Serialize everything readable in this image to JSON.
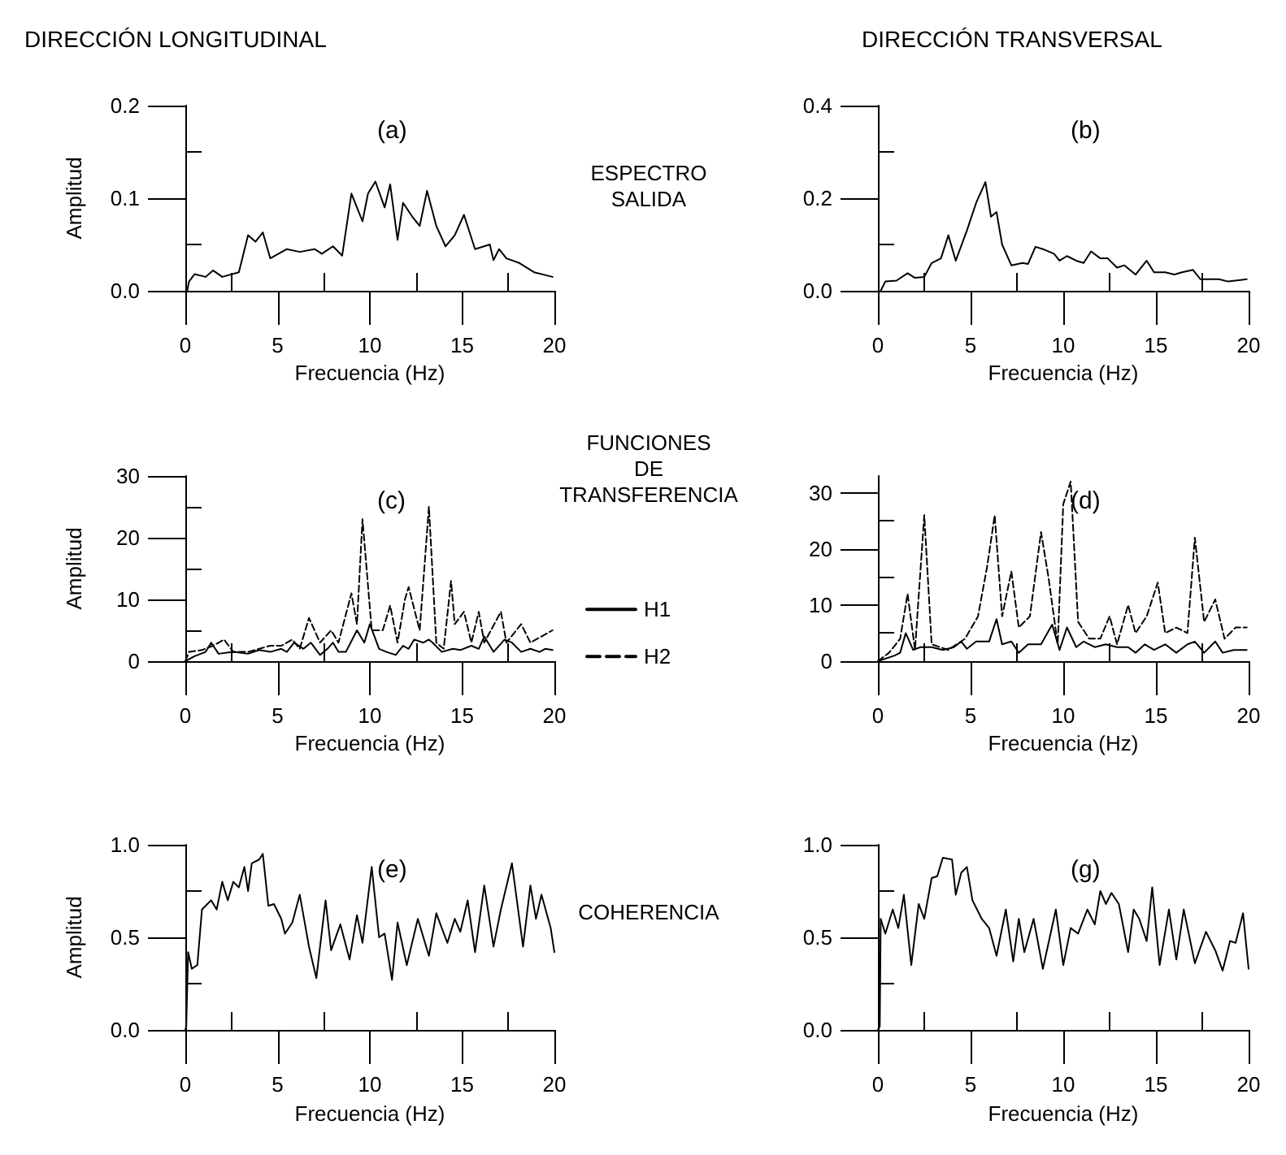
{
  "chart_data": [
    {
      "type": "line",
      "title": "DIRECCIÓN LONGITUDINAL",
      "xlabel": "Frecuencia (Hz)",
      "ylabel": "Amplitud",
      "annotations": [
        "(a)",
        "ESPECTRO SALIDA"
      ],
      "marker": "none",
      "xlim": [
        0,
        20
      ],
      "xticks": [
        0,
        {
          "value": 2.5,
          "label": null
        },
        5,
        {
          "value": 7.5,
          "label": null
        },
        10,
        {
          "value": 12.5,
          "label": null
        },
        15,
        {
          "value": 17.5,
          "label": null
        },
        20
      ],
      "ylim": [
        0,
        0.2
      ],
      "yticks": [
        {
          "value": 0,
          "label": "0.0"
        },
        {
          "value": 0.05,
          "label": null
        },
        {
          "value": 0.1,
          "label": "0.1"
        },
        {
          "value": 0.15,
          "label": null
        },
        {
          "value": 0.2,
          "label": "0.2"
        }
      ],
      "series": [
        {
          "color": "#000000",
          "line_style": "solid",
          "x": [
            0.1,
            0.2,
            0.5,
            1.1,
            1.5,
            2.0,
            2.9,
            3.4,
            3.8,
            4.2,
            4.6,
            5.5,
            6.2,
            7.0,
            7.4,
            8.0,
            8.5,
            9.0,
            9.6,
            9.9,
            10.3,
            10.8,
            11.1,
            11.5,
            11.8,
            12.3,
            12.7,
            13.1,
            13.6,
            14.1,
            14.6,
            15.1,
            15.7,
            16.5,
            16.7,
            17.0,
            17.4,
            18.1,
            18.9,
            19.9
          ],
          "values": [
            0,
            0.01,
            0.018,
            0.015,
            0.022,
            0.015,
            0.02,
            0.06,
            0.053,
            0.063,
            0.035,
            0.045,
            0.042,
            0.045,
            0.04,
            0.048,
            0.038,
            0.105,
            0.075,
            0.105,
            0.118,
            0.09,
            0.115,
            0.055,
            0.095,
            0.08,
            0.07,
            0.108,
            0.07,
            0.048,
            0.06,
            0.082,
            0.045,
            0.05,
            0.033,
            0.045,
            0.035,
            0.03,
            0.02,
            0.015
          ]
        }
      ]
    },
    {
      "type": "line",
      "title": "DIRECCIÓN TRANSVERSAL",
      "xlabel": "Frecuencia (Hz)",
      "annotations": [
        "(b)"
      ],
      "marker": "none",
      "xlim": [
        0,
        20
      ],
      "xticks": [
        0,
        {
          "value": 2.5,
          "label": null
        },
        5,
        {
          "value": 7.5,
          "label": null
        },
        10,
        {
          "value": 12.5,
          "label": null
        },
        15,
        {
          "value": 17.5,
          "label": null
        },
        20
      ],
      "ylim": [
        0,
        0.4
      ],
      "yticks": [
        {
          "value": 0,
          "label": "0.0"
        },
        {
          "value": 0.1,
          "label": null
        },
        {
          "value": 0.2,
          "label": "0.2"
        },
        {
          "value": 0.3,
          "label": null
        },
        {
          "value": 0.4,
          "label": "0.4"
        }
      ],
      "series": [
        {
          "color": "#000000",
          "line_style": "solid",
          "x": [
            0.15,
            0.4,
            1.0,
            1.6,
            2.0,
            2.5,
            2.9,
            3.4,
            3.8,
            4.2,
            4.8,
            5.3,
            5.8,
            6.1,
            6.4,
            6.7,
            7.2,
            7.8,
            8.1,
            8.5,
            8.9,
            9.5,
            9.8,
            10.2,
            10.7,
            11.1,
            11.5,
            12.0,
            12.4,
            12.9,
            13.3,
            13.9,
            14.5,
            14.9,
            15.5,
            16.0,
            16.4,
            17.0,
            17.4,
            18.4,
            18.9,
            19.9
          ],
          "values": [
            0,
            0.02,
            0.022,
            0.038,
            0.028,
            0.03,
            0.06,
            0.07,
            0.12,
            0.065,
            0.13,
            0.19,
            0.235,
            0.16,
            0.17,
            0.1,
            0.055,
            0.06,
            0.058,
            0.095,
            0.09,
            0.08,
            0.065,
            0.075,
            0.065,
            0.06,
            0.085,
            0.07,
            0.07,
            0.05,
            0.055,
            0.035,
            0.065,
            0.04,
            0.04,
            0.035,
            0.04,
            0.045,
            0.025,
            0.025,
            0.02,
            0.025
          ]
        }
      ]
    },
    {
      "type": "line",
      "xlabel": "Frecuencia (Hz)",
      "ylabel": "Amplitud",
      "annotations": [
        "(c)",
        "FUNCIONES DE TRANSFERENCIA"
      ],
      "legend": "right",
      "marker": "none",
      "xlim": [
        0,
        20
      ],
      "xticks": [
        0,
        {
          "value": 2.5,
          "label": null
        },
        5,
        {
          "value": 7.5,
          "label": null
        },
        10,
        {
          "value": 12.5,
          "label": null
        },
        15,
        {
          "value": 17.5,
          "label": null
        },
        20
      ],
      "ylim": [
        0,
        30
      ],
      "yticks": [
        0,
        {
          "value": 5,
          "label": null
        },
        10,
        {
          "value": 15,
          "label": null
        },
        20,
        {
          "value": 25,
          "label": null
        },
        30
      ],
      "series": [
        {
          "name": "H1",
          "color": "#000000",
          "line_style": "solid",
          "x": [
            0,
            0.5,
            1.1,
            1.4,
            1.8,
            2.6,
            3.4,
            4.0,
            4.6,
            5.2,
            5.5,
            5.9,
            6.4,
            6.8,
            7.3,
            7.7,
            8.0,
            8.3,
            8.7,
            9.3,
            9.7,
            10.0,
            10.5,
            10.9,
            11.4,
            11.8,
            12.1,
            12.4,
            12.9,
            13.2,
            13.4,
            13.9,
            14.5,
            14.9,
            15.5,
            15.9,
            16.2,
            16.7,
            17.3,
            17.7,
            18.2,
            18.7,
            19.2,
            19.5,
            19.9
          ],
          "values": [
            0,
            0.8,
            1.5,
            3,
            1.2,
            1.5,
            1.2,
            1.8,
            1.5,
            2,
            1.5,
            3,
            2,
            3,
            1,
            2,
            3,
            1.5,
            1.5,
            5,
            3,
            6,
            2,
            1.5,
            1,
            2.5,
            2,
            3.5,
            3,
            3.5,
            3,
            1.5,
            2,
            1.8,
            2.5,
            2,
            4,
            1.5,
            3.5,
            3,
            1.5,
            2,
            1.5,
            2,
            1.8
          ]
        },
        {
          "name": "H2",
          "color": "#000000",
          "line_style": "dashed",
          "x": [
            0,
            0.2,
            0.9,
            1.5,
            2.1,
            2.6,
            3.4,
            4.6,
            5.2,
            5.8,
            6.2,
            6.7,
            7.3,
            7.9,
            8.3,
            9.0,
            9.3,
            9.6,
            10.1,
            10.7,
            11.1,
            11.5,
            11.9,
            12.1,
            12.7,
            13.2,
            13.6,
            14.0,
            14.4,
            14.6,
            15.1,
            15.5,
            15.9,
            16.2,
            17.1,
            17.4,
            18.2,
            18.7,
            19.3,
            19.9
          ],
          "values": [
            0,
            1.5,
            1.8,
            2.5,
            3.5,
            1.5,
            1.5,
            2.5,
            2.5,
            3.5,
            2,
            7,
            3,
            5,
            3,
            11,
            6,
            23,
            5,
            5,
            9,
            3,
            10,
            12,
            5,
            25,
            3,
            2,
            13,
            6,
            8,
            3,
            8,
            3,
            8,
            3,
            6,
            3,
            4,
            5
          ]
        }
      ]
    },
    {
      "type": "line",
      "xlabel": "Frecuencia (Hz)",
      "annotations": [
        "(d)"
      ],
      "marker": "none",
      "xlim": [
        0,
        20
      ],
      "xticks": [
        0,
        {
          "value": 2.5,
          "label": null
        },
        5,
        {
          "value": 7.5,
          "label": null
        },
        10,
        {
          "value": 12.5,
          "label": null
        },
        15,
        {
          "value": 17.5,
          "label": null
        },
        20
      ],
      "ylim": [
        0,
        33
      ],
      "yticks": [
        0,
        {
          "value": 5,
          "label": null
        },
        10,
        {
          "value": 15,
          "label": null
        },
        20,
        {
          "value": 25,
          "label": null
        },
        30
      ],
      "series": [
        {
          "color": "#000000",
          "line_style": "solid",
          "x": [
            0,
            0.9,
            1.2,
            1.5,
            1.9,
            2.3,
            2.9,
            3.5,
            4.1,
            4.5,
            4.8,
            5.3,
            6.0,
            6.4,
            6.7,
            7.2,
            7.6,
            8.1,
            8.8,
            9.4,
            9.8,
            10.2,
            10.7,
            11.1,
            11.7,
            12.3,
            12.9,
            13.5,
            13.9,
            14.4,
            14.9,
            15.5,
            16.1,
            16.7,
            17.1,
            17.6,
            18.2,
            18.6,
            19.2,
            19.9
          ],
          "values": [
            0,
            1,
            1.5,
            5,
            2,
            2.5,
            2.5,
            2,
            2.5,
            3.5,
            2.2,
            3.5,
            3.5,
            7.5,
            3,
            3.5,
            1.5,
            3,
            3,
            6.5,
            2,
            6,
            2.5,
            3.5,
            2.5,
            3,
            2.5,
            2.5,
            1.5,
            3,
            2,
            3,
            1.5,
            3,
            3.5,
            1.5,
            3.5,
            1.5,
            2,
            2
          ]
        },
        {
          "color": "#000000",
          "line_style": "dashed",
          "x": [
            0,
            0.6,
            1.2,
            1.6,
            2.0,
            2.5,
            2.9,
            3.8,
            4.7,
            5.4,
            5.9,
            6.3,
            6.7,
            7.2,
            7.6,
            8.2,
            8.8,
            9.2,
            9.7,
            10.0,
            10.4,
            10.8,
            11.4,
            12.0,
            12.5,
            12.9,
            13.5,
            13.9,
            14.5,
            15.1,
            15.5,
            16.1,
            16.7,
            17.1,
            17.6,
            18.2,
            18.7,
            19.3,
            19.9
          ],
          "values": [
            0,
            1.5,
            4,
            12,
            2,
            26,
            3,
            2,
            4,
            8,
            17,
            26,
            8,
            16,
            6,
            8,
            23,
            15,
            3,
            28,
            32,
            7,
            4,
            4,
            8,
            3,
            10,
            5,
            8,
            14,
            5,
            6,
            5,
            22,
            7,
            11,
            4,
            6,
            6
          ]
        }
      ]
    },
    {
      "type": "line",
      "xlabel": "Frecuencia (Hz)",
      "ylabel": "Amplitud",
      "annotations": [
        "(e)",
        "COHERENCIA"
      ],
      "marker": "none",
      "xlim": [
        0,
        20
      ],
      "xticks": [
        0,
        {
          "value": 2.5,
          "label": null
        },
        5,
        {
          "value": 7.5,
          "label": null
        },
        10,
        {
          "value": 12.5,
          "label": null
        },
        15,
        {
          "value": 17.5,
          "label": null
        },
        20
      ],
      "ylim": [
        0,
        1
      ],
      "yticks": [
        {
          "value": 0,
          "label": "0.0"
        },
        {
          "value": 0.25,
          "label": null
        },
        {
          "value": 0.5,
          "label": "0.5"
        },
        {
          "value": 0.75,
          "label": null
        },
        {
          "value": 1,
          "label": "1.0"
        }
      ],
      "series": [
        {
          "color": "#000000",
          "line_style": "solid",
          "x": [
            0,
            0.05,
            0.15,
            0.35,
            0.65,
            0.9,
            1.4,
            1.7,
            2.0,
            2.3,
            2.6,
            2.9,
            3.2,
            3.4,
            3.6,
            4.0,
            4.2,
            4.5,
            4.8,
            5.2,
            5.4,
            5.8,
            6.2,
            6.7,
            7.1,
            7.6,
            7.9,
            8.4,
            8.9,
            9.3,
            9.6,
            10.1,
            10.5,
            10.8,
            11.2,
            11.5,
            12.0,
            12.6,
            13.2,
            13.6,
            13.9,
            14.2,
            14.6,
            14.9,
            15.3,
            15.7,
            16.2,
            16.7,
            17.1,
            17.7,
            18.3,
            18.7,
            19.0,
            19.3,
            19.8,
            20.0
          ],
          "values": [
            0,
            0.02,
            0.42,
            0.33,
            0.35,
            0.65,
            0.7,
            0.65,
            0.8,
            0.7,
            0.8,
            0.77,
            0.88,
            0.75,
            0.9,
            0.92,
            0.95,
            0.67,
            0.68,
            0.6,
            0.52,
            0.58,
            0.73,
            0.45,
            0.28,
            0.7,
            0.43,
            0.57,
            0.38,
            0.62,
            0.47,
            0.88,
            0.5,
            0.52,
            0.27,
            0.58,
            0.35,
            0.6,
            0.4,
            0.63,
            0.55,
            0.47,
            0.6,
            0.53,
            0.7,
            0.42,
            0.78,
            0.45,
            0.65,
            0.9,
            0.45,
            0.78,
            0.6,
            0.73,
            0.55,
            0.42
          ]
        }
      ]
    },
    {
      "type": "line",
      "xlabel": "Frecuencia (Hz)",
      "annotations": [
        "(g)"
      ],
      "marker": "none",
      "xlim": [
        0,
        20
      ],
      "xticks": [
        0,
        {
          "value": 2.5,
          "label": null
        },
        5,
        {
          "value": 7.5,
          "label": null
        },
        10,
        {
          "value": 12.5,
          "label": null
        },
        15,
        {
          "value": 17.5,
          "label": null
        },
        20
      ],
      "ylim": [
        0,
        1
      ],
      "yticks": [
        {
          "value": 0,
          "label": "0.0"
        },
        {
          "value": 0.25,
          "label": null
        },
        {
          "value": 0.5,
          "label": "0.5"
        },
        {
          "value": 0.75,
          "label": null
        },
        {
          "value": 1,
          "label": "1.0"
        }
      ],
      "series": [
        {
          "color": "#000000",
          "line_style": "solid",
          "x": [
            0,
            0.1,
            0.15,
            0.4,
            0.8,
            1.1,
            1.4,
            1.8,
            2.2,
            2.5,
            2.9,
            3.2,
            3.5,
            4.0,
            4.2,
            4.5,
            4.8,
            5.1,
            5.6,
            6.0,
            6.4,
            6.9,
            7.3,
            7.6,
            7.9,
            8.4,
            8.9,
            9.6,
            10.0,
            10.4,
            10.8,
            11.3,
            11.7,
            12.0,
            12.3,
            12.6,
            13.0,
            13.5,
            13.8,
            14.1,
            14.5,
            14.8,
            15.2,
            15.7,
            16.1,
            16.5,
            17.1,
            17.7,
            18.2,
            18.6,
            19.0,
            19.3,
            19.7,
            20.0
          ],
          "values": [
            0,
            0.02,
            0.6,
            0.52,
            0.65,
            0.55,
            0.73,
            0.35,
            0.68,
            0.6,
            0.82,
            0.83,
            0.93,
            0.92,
            0.73,
            0.85,
            0.88,
            0.7,
            0.6,
            0.55,
            0.4,
            0.65,
            0.37,
            0.6,
            0.42,
            0.6,
            0.33,
            0.65,
            0.35,
            0.55,
            0.52,
            0.65,
            0.57,
            0.75,
            0.68,
            0.74,
            0.68,
            0.42,
            0.65,
            0.6,
            0.48,
            0.77,
            0.35,
            0.65,
            0.38,
            0.65,
            0.36,
            0.53,
            0.43,
            0.32,
            0.48,
            0.47,
            0.63,
            0.33
          ]
        }
      ]
    }
  ]
}
